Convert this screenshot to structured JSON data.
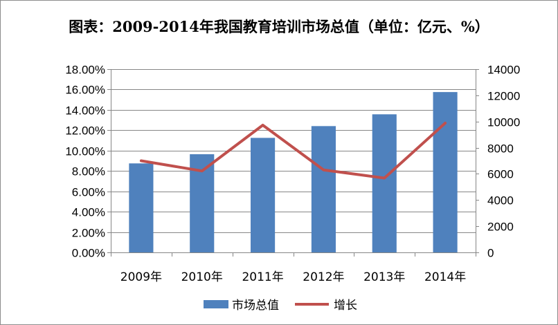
{
  "chart_data": {
    "type": "bar",
    "title": "图表：2009-2014年我国教育培训市场总值（单位：亿元、%）",
    "categories": [
      "2009年",
      "2010年",
      "2011年",
      "2012年",
      "2013年",
      "2014年"
    ],
    "series": [
      {
        "name": "市场总值",
        "type": "bar",
        "axis": "right",
        "color": "#4f81bd",
        "values": [
          6800,
          7500,
          8750,
          9650,
          10550,
          12250
        ]
      },
      {
        "name": "增长",
        "type": "line",
        "axis": "left",
        "color": "#c0504d",
        "values": [
          0.09,
          0.08,
          0.125,
          0.081,
          0.073,
          0.127
        ]
      }
    ],
    "y_left": {
      "min": 0,
      "max": 0.18,
      "step": 0.02,
      "ticks": [
        "0.00%",
        "2.00%",
        "4.00%",
        "6.00%",
        "8.00%",
        "10.00%",
        "12.00%",
        "14.00%",
        "16.00%",
        "18.00%"
      ]
    },
    "y_right": {
      "min": 0,
      "max": 14000,
      "step": 2000,
      "ticks": [
        "0",
        "2000",
        "4000",
        "6000",
        "8000",
        "10000",
        "12000",
        "14000"
      ]
    },
    "grid": true,
    "legend": {
      "position": "bottom",
      "entries": [
        {
          "label": "市场总值",
          "color": "#4f81bd",
          "shape": "bar"
        },
        {
          "label": "增长",
          "color": "#c0504d",
          "shape": "line"
        }
      ]
    }
  }
}
